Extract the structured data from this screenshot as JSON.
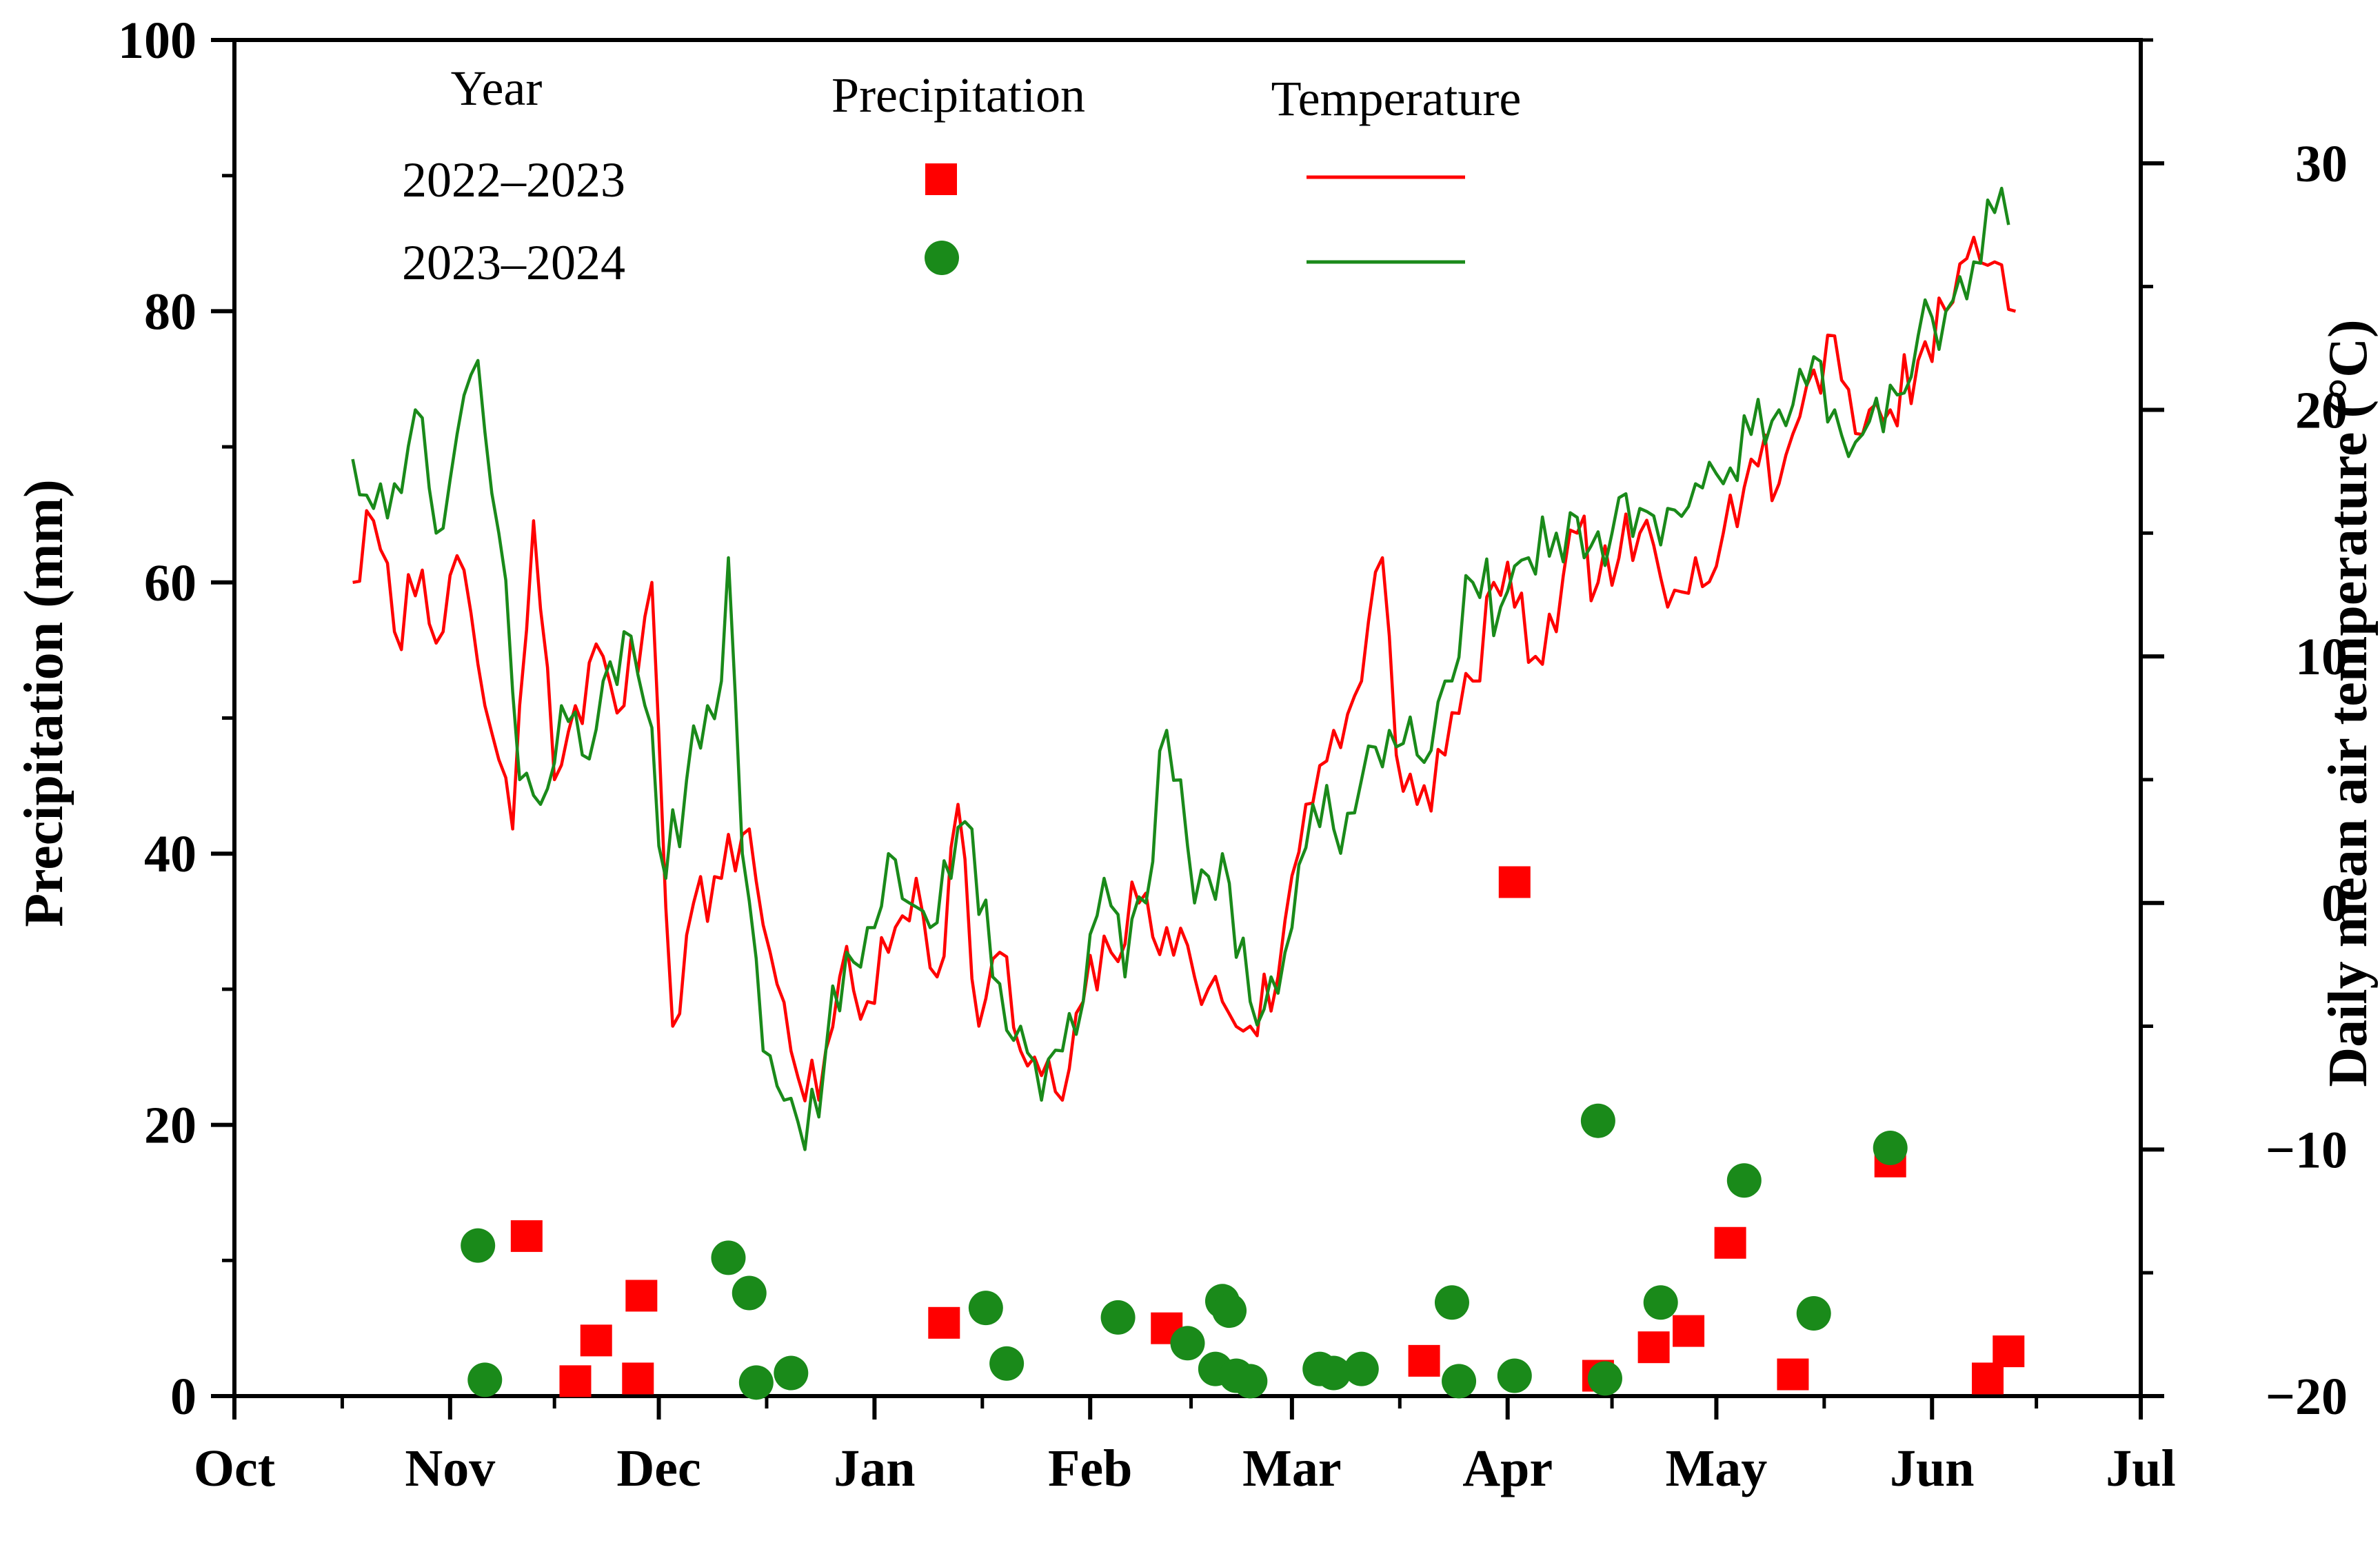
{
  "chart_data": {
    "type": "scatter+line",
    "title": "",
    "xlabel": "",
    "ylabel_left": "Precipitation (mm)",
    "ylabel_right": "Daily mean air temperature (°C)",
    "x_unit": "day of season (Oct 1 = 0)",
    "x_ticks": [
      {
        "label": "Oct",
        "day": 0
      },
      {
        "label": "Nov",
        "day": 31
      },
      {
        "label": "Dec",
        "day": 61
      },
      {
        "label": "Jan",
        "day": 92
      },
      {
        "label": "Feb",
        "day": 123
      },
      {
        "label": "Mar",
        "day": 152
      },
      {
        "label": "Apr",
        "day": 183
      },
      {
        "label": "May",
        "day": 213
      },
      {
        "label": "Jun",
        "day": 244
      },
      {
        "label": "Jul",
        "day": 274
      }
    ],
    "xlim": [
      0,
      274
    ],
    "ylim_left": [
      0,
      100
    ],
    "yticks_left": [
      0,
      20,
      40,
      60,
      80,
      100
    ],
    "ylim_right": [
      -20,
      35
    ],
    "yticks_right": [
      -20,
      -10,
      0,
      10,
      20,
      30
    ],
    "legend": {
      "headers": [
        "Year",
        "Precipitation",
        "Temperature"
      ],
      "rows": [
        {
          "label": "2022–2023",
          "color": "#ff0000",
          "marker": "square"
        },
        {
          "label": "2023–2024",
          "color": "#1a8a1a",
          "marker": "circle"
        }
      ]
    },
    "precipitation": [
      {
        "name": "2022–2023",
        "color": "#ff0000",
        "marker": "square",
        "points": [
          [
            42,
            11.8
          ],
          [
            49,
            1.1
          ],
          [
            52,
            4.1
          ],
          [
            58,
            1.3
          ],
          [
            58.5,
            7.4
          ],
          [
            102,
            5.4
          ],
          [
            134,
            5.0
          ],
          [
            171,
            2.6
          ],
          [
            184,
            37.9
          ],
          [
            196,
            1.5
          ],
          [
            204,
            3.6
          ],
          [
            209,
            4.8
          ],
          [
            215,
            11.3
          ],
          [
            224,
            1.6
          ],
          [
            238,
            17.3
          ],
          [
            252,
            1.3
          ],
          [
            255,
            3.3
          ]
        ]
      },
      {
        "name": "2023–2024",
        "color": "#1a8a1a",
        "marker": "circle",
        "points": [
          [
            35,
            11.1
          ],
          [
            36,
            1.2
          ],
          [
            71,
            10.2
          ],
          [
            74,
            7.6
          ],
          [
            75,
            1.0
          ],
          [
            80,
            1.7
          ],
          [
            108,
            6.5
          ],
          [
            111,
            2.4
          ],
          [
            127,
            5.8
          ],
          [
            137,
            3.9
          ],
          [
            141,
            2.0
          ],
          [
            142,
            7.0
          ],
          [
            143,
            6.3
          ],
          [
            144,
            1.5
          ],
          [
            146,
            1.1
          ],
          [
            156,
            2.0
          ],
          [
            158,
            1.7
          ],
          [
            162,
            2.0
          ],
          [
            175,
            6.9
          ],
          [
            176,
            1.1
          ],
          [
            184,
            1.5
          ],
          [
            196,
            20.3
          ],
          [
            197,
            1.3
          ],
          [
            205,
            6.9
          ],
          [
            217,
            15.9
          ],
          [
            227,
            6.1
          ],
          [
            238,
            18.3
          ]
        ]
      }
    ],
    "temperature": [
      {
        "name": "2022–2023",
        "color": "#ff0000",
        "anchors": [
          [
            17,
            13
          ],
          [
            20,
            15.5
          ],
          [
            23,
            11
          ],
          [
            27,
            13.5
          ],
          [
            30,
            11
          ],
          [
            33,
            13.5
          ],
          [
            36,
            8
          ],
          [
            40,
            3
          ],
          [
            43,
            15.5
          ],
          [
            46,
            5
          ],
          [
            49,
            8
          ],
          [
            53,
            10
          ],
          [
            56,
            8
          ],
          [
            60,
            13
          ],
          [
            63,
            -5
          ],
          [
            66,
            0
          ],
          [
            70,
            1
          ],
          [
            74,
            3
          ],
          [
            77,
            -2
          ],
          [
            80,
            -6
          ],
          [
            84,
            -8
          ],
          [
            87,
            -3
          ],
          [
            91,
            -4
          ],
          [
            94,
            -2
          ],
          [
            98,
            1
          ],
          [
            101,
            -3
          ],
          [
            104,
            4
          ],
          [
            107,
            -5
          ],
          [
            110,
            -2
          ],
          [
            113,
            -6
          ],
          [
            116,
            -7
          ],
          [
            119,
            -8
          ],
          [
            122,
            -4
          ],
          [
            126,
            -2
          ],
          [
            130,
            0
          ],
          [
            134,
            -1
          ],
          [
            138,
            -3
          ],
          [
            142,
            -4
          ],
          [
            146,
            -5
          ],
          [
            150,
            -3
          ],
          [
            154,
            4
          ],
          [
            158,
            7
          ],
          [
            162,
            9
          ],
          [
            165,
            14
          ],
          [
            167,
            6
          ],
          [
            170,
            4
          ],
          [
            174,
            6
          ],
          [
            178,
            9
          ],
          [
            181,
            13
          ],
          [
            184,
            12
          ],
          [
            187,
            10
          ],
          [
            190,
            11
          ],
          [
            193,
            15
          ],
          [
            196,
            13
          ],
          [
            199,
            14
          ],
          [
            202,
            15
          ],
          [
            206,
            12
          ],
          [
            210,
            14
          ],
          [
            214,
            15
          ],
          [
            218,
            18
          ],
          [
            222,
            17
          ],
          [
            226,
            21
          ],
          [
            230,
            23
          ],
          [
            234,
            19
          ],
          [
            238,
            20
          ],
          [
            242,
            22
          ],
          [
            246,
            24
          ],
          [
            250,
            27
          ],
          [
            253,
            26
          ],
          [
            256,
            24
          ]
        ],
        "noise_seed": 7,
        "noise_amp": 1.5
      },
      {
        "name": "2023–2024",
        "color": "#1a8a1a",
        "anchors": [
          [
            17,
            18
          ],
          [
            20,
            16
          ],
          [
            23,
            17
          ],
          [
            26,
            20
          ],
          [
            29,
            15
          ],
          [
            32,
            19
          ],
          [
            35,
            22
          ],
          [
            38,
            15
          ],
          [
            41,
            5
          ],
          [
            44,
            4
          ],
          [
            47,
            8
          ],
          [
            50,
            6
          ],
          [
            53,
            9
          ],
          [
            56,
            11
          ],
          [
            59,
            8
          ],
          [
            62,
            1
          ],
          [
            65,
            5
          ],
          [
            68,
            8
          ],
          [
            70,
            9
          ],
          [
            71,
            14
          ],
          [
            73,
            2
          ],
          [
            76,
            -6
          ],
          [
            79,
            -8
          ],
          [
            82,
            -10
          ],
          [
            85,
            -6
          ],
          [
            88,
            -2
          ],
          [
            91,
            -1
          ],
          [
            94,
            2
          ],
          [
            97,
            0
          ],
          [
            100,
            -1
          ],
          [
            103,
            1
          ],
          [
            106,
            3
          ],
          [
            109,
            -3
          ],
          [
            113,
            -5
          ],
          [
            116,
            -8
          ],
          [
            119,
            -6
          ],
          [
            122,
            -4
          ],
          [
            125,
            1
          ],
          [
            128,
            -3
          ],
          [
            131,
            0
          ],
          [
            134,
            7
          ],
          [
            138,
            0
          ],
          [
            142,
            2
          ],
          [
            146,
            -4
          ],
          [
            149,
            -3
          ],
          [
            152,
            -1
          ],
          [
            155,
            4
          ],
          [
            158,
            3
          ],
          [
            162,
            5
          ],
          [
            166,
            7
          ],
          [
            170,
            6
          ],
          [
            174,
            9
          ],
          [
            178,
            13
          ],
          [
            182,
            12
          ],
          [
            186,
            14
          ],
          [
            190,
            15
          ],
          [
            194,
            14
          ],
          [
            198,
            15
          ],
          [
            202,
            16
          ],
          [
            206,
            16
          ],
          [
            210,
            17
          ],
          [
            214,
            17
          ],
          [
            218,
            19
          ],
          [
            222,
            20
          ],
          [
            226,
            21
          ],
          [
            230,
            20
          ],
          [
            234,
            19
          ],
          [
            238,
            21
          ],
          [
            242,
            23
          ],
          [
            246,
            24
          ],
          [
            250,
            26
          ],
          [
            253,
            28
          ],
          [
            255,
            27.5
          ]
        ],
        "noise_seed": 13,
        "noise_amp": 1.5
      }
    ]
  }
}
